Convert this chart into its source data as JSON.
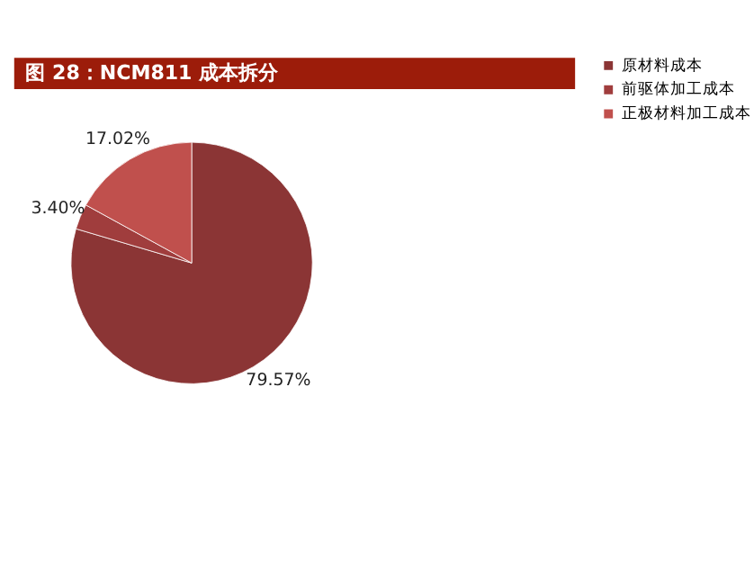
{
  "chart_data": {
    "type": "pie",
    "title": "图 28：NCM811 成本拆分",
    "categories": [
      "原材料成本",
      "前驱体加工成本",
      "正极材料加工成本"
    ],
    "values": [
      79.57,
      3.4,
      17.02
    ],
    "colors": [
      "#8b3535",
      "#a03d3d",
      "#c0504d"
    ],
    "value_labels": [
      "79.57%",
      "3.40%",
      "17.02%"
    ],
    "legend": "right"
  }
}
